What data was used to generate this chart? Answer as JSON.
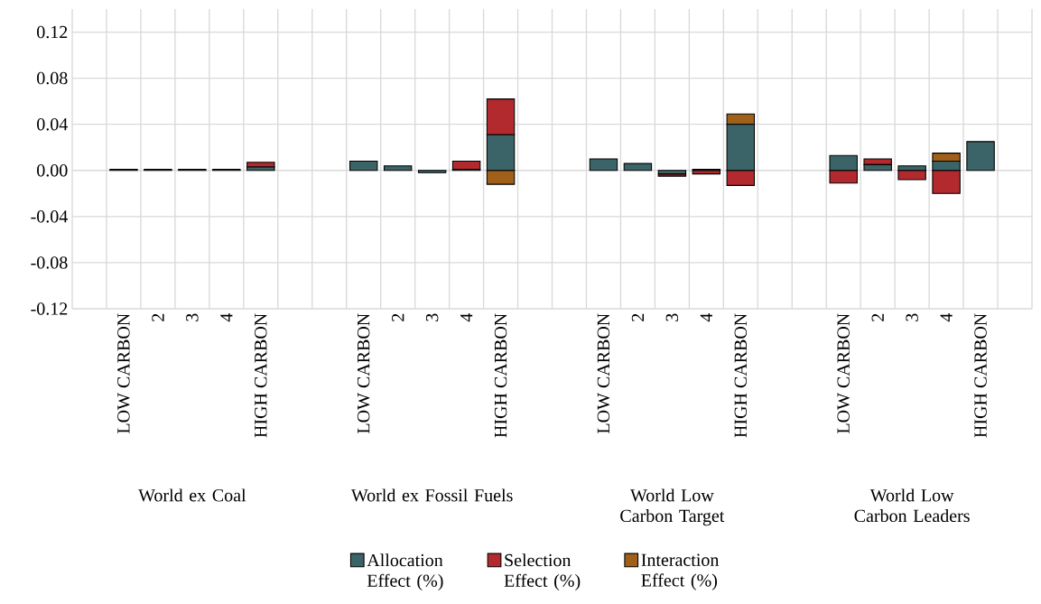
{
  "chart_data": {
    "type": "bar",
    "stacked": true,
    "categories": [
      null,
      "LOW CARBON",
      "2",
      "3",
      "4",
      "HIGH CARBON",
      null,
      null,
      "LOW CARBON",
      "2",
      "3",
      "4",
      "HIGH CARBON",
      null,
      null,
      "LOW CARBON",
      "2",
      "3",
      "4",
      "HIGH CARBON",
      null,
      null,
      "LOW CARBON",
      "2",
      "3",
      "4",
      "HIGH CARBON",
      null
    ],
    "series": [
      {
        "name": "Allocation Effect (%)",
        "color": "#3a6468",
        "values": [
          null,
          0.001,
          0.001,
          0.001,
          0.001,
          0.003,
          null,
          null,
          0.008,
          0.004,
          -0.002,
          0.001,
          0.031,
          null,
          null,
          0.01,
          0.006,
          -0.003,
          0.001,
          0.04,
          null,
          null,
          0.013,
          0.005,
          0.004,
          0.008,
          0.025,
          null
        ]
      },
      {
        "name": "Selection Effect (%)",
        "color": "#b22a2e",
        "values": [
          null,
          0,
          0,
          0,
          0,
          0.004,
          null,
          null,
          0,
          0,
          0,
          0.007,
          0.031,
          null,
          null,
          0,
          0,
          -0.002,
          -0.003,
          -0.013,
          null,
          null,
          -0.011,
          0.005,
          -0.008,
          -0.02,
          0,
          null
        ]
      },
      {
        "name": "Interaction Effect (%)",
        "color": "#a0601a",
        "values": [
          null,
          0,
          0,
          0,
          0,
          0,
          null,
          null,
          0,
          0,
          0,
          0,
          -0.012,
          null,
          null,
          0,
          0,
          0,
          0,
          0.009,
          null,
          null,
          0,
          0,
          0,
          0.007,
          0,
          null
        ]
      }
    ],
    "annotations": [
      "World ex Coal",
      "World ex Fossil Fuels",
      "World Low Carbon Target",
      "World Low Carbon Leaders"
    ],
    "ylim": [
      -0.12,
      0.14
    ],
    "yticks": [
      {
        "value": -0.12,
        "label": "-0.12"
      },
      {
        "value": -0.08,
        "label": "-0.08"
      },
      {
        "value": -0.04,
        "label": "-0.04"
      },
      {
        "value": 0,
        "label": "0.00"
      },
      {
        "value": 0.04,
        "label": "0.04"
      },
      {
        "value": 0.08,
        "label": "0.08"
      },
      {
        "value": 0.12,
        "label": "0.12"
      }
    ],
    "grid": true,
    "legend": "bottom"
  }
}
